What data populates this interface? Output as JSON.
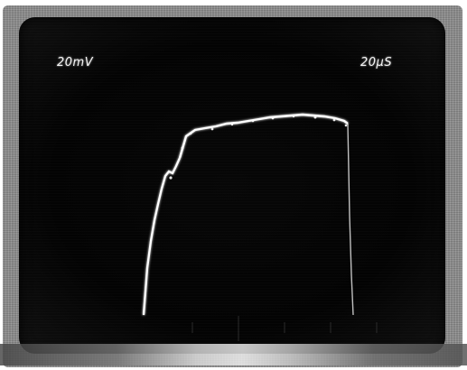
{
  "display": {
    "volts_div": "20mV",
    "time_div": "20μS"
  },
  "colors": {
    "trace": "#ffffff",
    "screen": "#050505",
    "bezel": "#8c8c8c"
  }
}
